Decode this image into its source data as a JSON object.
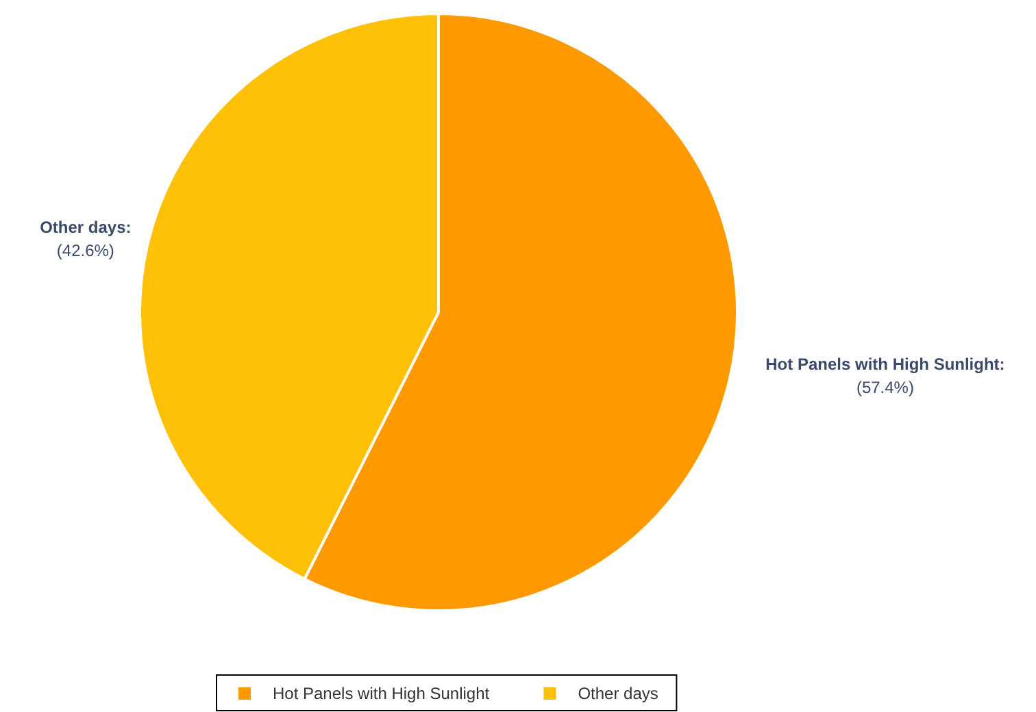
{
  "chart_data": {
    "type": "pie",
    "categories": [
      "Hot Panels with High Sunlight",
      "Other days"
    ],
    "values": [
      57.4,
      42.6
    ],
    "colors": [
      "#ff9900",
      "#ffc107"
    ],
    "value_labels": [
      "Hot Panels with High Sunlight:\n(57.4%)",
      "Other days:\n(42.6%)"
    ],
    "legend": "bottom"
  }
}
